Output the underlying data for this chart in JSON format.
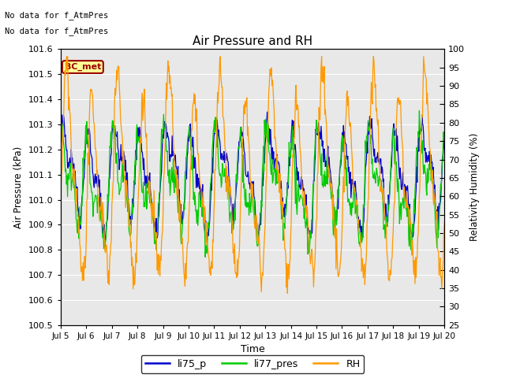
{
  "title": "Air Pressure and RH",
  "xlabel": "Time",
  "ylabel_left": "Air Pressure (kPa)",
  "ylabel_right": "Relativity Humidity (%)",
  "annotation_line1": "No data for f_AtmPres",
  "annotation_line2": "No data for f̲AtmPres",
  "station_label": "BC_met",
  "ylim_left": [
    100.5,
    101.6
  ],
  "ylim_right": [
    25,
    100
  ],
  "yticks_left": [
    100.5,
    100.6,
    100.7,
    100.8,
    100.9,
    101.0,
    101.1,
    101.2,
    101.3,
    101.4,
    101.5,
    101.6
  ],
  "yticks_right": [
    25,
    30,
    35,
    40,
    45,
    50,
    55,
    60,
    65,
    70,
    75,
    80,
    85,
    90,
    95,
    100
  ],
  "xtick_labels": [
    "Jul 5",
    "Jul 6",
    "Jul 7",
    "Jul 8",
    "Jul 9",
    "Jul 10",
    "Jul 11",
    "Jul 12",
    "Jul 13",
    "Jul 14",
    "Jul 15",
    "Jul 16",
    "Jul 17",
    "Jul 18",
    "Jul 19",
    "Jul 20"
  ],
  "color_li75": "#0000cc",
  "color_li77": "#00cc00",
  "color_rh": "#ff9900",
  "plot_bg": "#e8e8e8",
  "fig_bg": "#ffffff",
  "legend_labels": [
    "li75_p",
    "li77_pres",
    "RH"
  ],
  "legend_colors": [
    "#0000cc",
    "#00cc00",
    "#ff9900"
  ],
  "station_box_color": "#990000",
  "station_box_bg": "#ffff99"
}
